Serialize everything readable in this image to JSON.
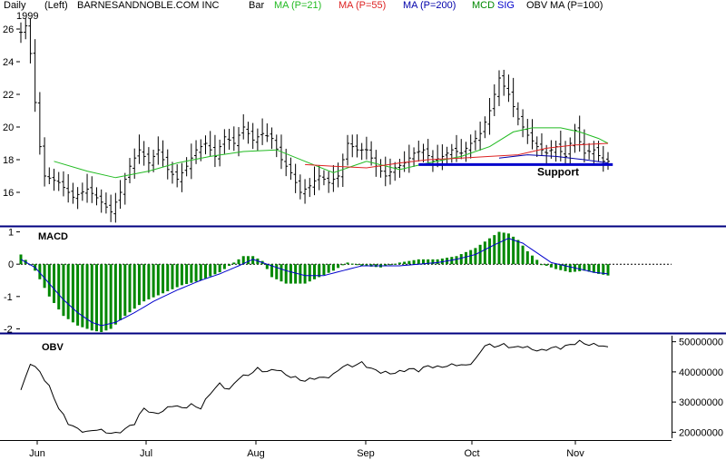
{
  "header": {
    "period": "Daily",
    "axis_side": "(Left)",
    "ticker": "BARNESANDNOBLE.COM INC",
    "year": "1999",
    "chart_style": "Bar",
    "ma21": "MA (P=21)",
    "ma55": "MA (P=55)",
    "ma200": "MA (P=200)",
    "mcd": "MCD",
    "sig": "SIG",
    "obv": "OBV",
    "ma100": "MA (P=100)"
  },
  "colors": {
    "ma21": "#22bb22",
    "ma55": "#dd2222",
    "ma200": "#0000aa",
    "mcd": "#008800",
    "sig": "#0000cc",
    "support": "#0000cc",
    "divider": "#000080",
    "bars": "#000000"
  },
  "chart_data": [
    {
      "type": "bar",
      "panel": "price",
      "ylim": [
        14,
        27
      ],
      "yticks": [
        16,
        18,
        20,
        22,
        24,
        26
      ],
      "ytick_labels": [
        "16",
        "18",
        "20",
        "22",
        "24",
        "26"
      ],
      "x_months": [
        "Jun",
        "Jul",
        "Aug",
        "Sep",
        "Oct",
        "Nov"
      ],
      "price_anchors": [
        [
          0,
          25.8
        ],
        [
          1,
          26.2
        ],
        [
          2,
          24.5
        ],
        [
          3,
          21.5
        ],
        [
          4,
          18.8
        ],
        [
          5,
          17.0
        ],
        [
          8,
          16.6
        ],
        [
          11,
          15.7
        ],
        [
          14,
          16.2
        ],
        [
          17,
          15.4
        ],
        [
          19,
          14.8
        ],
        [
          21,
          16.0
        ],
        [
          23,
          17.6
        ],
        [
          25,
          18.6
        ],
        [
          27,
          17.8
        ],
        [
          29,
          18.6
        ],
        [
          31,
          17.4
        ],
        [
          33,
          16.8
        ],
        [
          35,
          17.6
        ],
        [
          37,
          18.6
        ],
        [
          39,
          19.0
        ],
        [
          41,
          18.2
        ],
        [
          43,
          19.4
        ],
        [
          45,
          19.0
        ],
        [
          47,
          20.0
        ],
        [
          49,
          19.2
        ],
        [
          51,
          19.6
        ],
        [
          53,
          19.3
        ],
        [
          55,
          18.0
        ],
        [
          57,
          17.2
        ],
        [
          59,
          16.0
        ],
        [
          61,
          16.4
        ],
        [
          63,
          17.0
        ],
        [
          65,
          16.6
        ],
        [
          67,
          17.0
        ],
        [
          69,
          19.0
        ],
        [
          71,
          18.6
        ],
        [
          73,
          18.6
        ],
        [
          75,
          17.6
        ],
        [
          77,
          17.0
        ],
        [
          79,
          17.5
        ],
        [
          81,
          17.8
        ],
        [
          83,
          18.4
        ],
        [
          85,
          18.6
        ],
        [
          87,
          17.9
        ],
        [
          89,
          18.2
        ],
        [
          91,
          18.6
        ],
        [
          93,
          18.4
        ],
        [
          95,
          19.0
        ],
        [
          97,
          19.6
        ],
        [
          99,
          21.0
        ],
        [
          101,
          23.0
        ],
        [
          103,
          22.0
        ],
        [
          105,
          20.5
        ],
        [
          107,
          19.5
        ],
        [
          109,
          18.8
        ],
        [
          111,
          18.4
        ],
        [
          113,
          18.8
        ],
        [
          115,
          18.2
        ],
        [
          117,
          19.8
        ],
        [
          119,
          18.4
        ],
        [
          121,
          18.6
        ],
        [
          123,
          17.9
        ]
      ],
      "ma21": [
        [
          7,
          17.9
        ],
        [
          14,
          17.3
        ],
        [
          20,
          16.9
        ],
        [
          27,
          17.3
        ],
        [
          33,
          17.8
        ],
        [
          40,
          18.2
        ],
        [
          47,
          18.5
        ],
        [
          54,
          18.6
        ],
        [
          60,
          17.9
        ],
        [
          66,
          17.2
        ],
        [
          73,
          17.9
        ],
        [
          80,
          17.4
        ],
        [
          86,
          17.8
        ],
        [
          93,
          18.2
        ],
        [
          99,
          18.8
        ],
        [
          104,
          19.7
        ],
        [
          108,
          19.95
        ],
        [
          114,
          19.95
        ],
        [
          118,
          19.7
        ],
        [
          122,
          19.3
        ],
        [
          124,
          19.0
        ]
      ],
      "ma55": [
        [
          60,
          17.7
        ],
        [
          66,
          17.6
        ],
        [
          73,
          17.5
        ],
        [
          80,
          17.8
        ],
        [
          86,
          18.0
        ],
        [
          93,
          18.1
        ],
        [
          99,
          18.2
        ],
        [
          105,
          18.3
        ],
        [
          111,
          18.7
        ],
        [
          117,
          18.9
        ],
        [
          124,
          19.0
        ]
      ],
      "ma200": [
        [
          101,
          18.1
        ],
        [
          107,
          18.3
        ],
        [
          113,
          18.2
        ],
        [
          119,
          18.0
        ],
        [
          124,
          17.8
        ]
      ],
      "support": {
        "level": 17.7,
        "x_from": 84,
        "x_to": 125,
        "label": "Support"
      }
    },
    {
      "type": "bar",
      "panel": "macd",
      "title": "MACD",
      "ylim": [
        -2.1,
        1.1
      ],
      "yticks": [
        1,
        0,
        -1,
        -2
      ],
      "ytick_labels": [
        "1",
        "0",
        "-1",
        "-2"
      ],
      "hist_anchors": [
        [
          0,
          0.3
        ],
        [
          3,
          -0.2
        ],
        [
          6,
          -1.0
        ],
        [
          9,
          -1.6
        ],
        [
          12,
          -1.9
        ],
        [
          15,
          -2.05
        ],
        [
          17,
          -2.1
        ],
        [
          19,
          -2.0
        ],
        [
          22,
          -1.6
        ],
        [
          26,
          -1.15
        ],
        [
          30,
          -0.9
        ],
        [
          34,
          -0.65
        ],
        [
          38,
          -0.5
        ],
        [
          42,
          -0.25
        ],
        [
          45,
          0.05
        ],
        [
          47,
          0.25
        ],
        [
          49,
          0.25
        ],
        [
          51,
          0.1
        ],
        [
          53,
          -0.4
        ],
        [
          56,
          -0.6
        ],
        [
          60,
          -0.6
        ],
        [
          63,
          -0.4
        ],
        [
          66,
          -0.2
        ],
        [
          69,
          0.05
        ],
        [
          72,
          -0.05
        ],
        [
          76,
          -0.1
        ],
        [
          80,
          0.05
        ],
        [
          84,
          0.15
        ],
        [
          88,
          0.15
        ],
        [
          92,
          0.25
        ],
        [
          96,
          0.5
        ],
        [
          99,
          0.8
        ],
        [
          101,
          1.0
        ],
        [
          103,
          0.95
        ],
        [
          105,
          0.75
        ],
        [
          107,
          0.4
        ],
        [
          110,
          0.0
        ],
        [
          113,
          -0.15
        ],
        [
          116,
          -0.25
        ],
        [
          119,
          -0.2
        ],
        [
          122,
          -0.3
        ],
        [
          124,
          -0.35
        ]
      ],
      "signal_anchors": [
        [
          0,
          0.15
        ],
        [
          3,
          -0.1
        ],
        [
          6,
          -0.6
        ],
        [
          9,
          -1.1
        ],
        [
          12,
          -1.5
        ],
        [
          15,
          -1.8
        ],
        [
          17,
          -1.9
        ],
        [
          20,
          -1.8
        ],
        [
          24,
          -1.5
        ],
        [
          28,
          -1.15
        ],
        [
          33,
          -0.8
        ],
        [
          38,
          -0.5
        ],
        [
          42,
          -0.3
        ],
        [
          46,
          -0.05
        ],
        [
          49,
          0.15
        ],
        [
          52,
          0.0
        ],
        [
          56,
          -0.2
        ],
        [
          60,
          -0.35
        ],
        [
          64,
          -0.35
        ],
        [
          68,
          -0.2
        ],
        [
          72,
          -0.05
        ],
        [
          76,
          -0.05
        ],
        [
          80,
          -0.05
        ],
        [
          84,
          0.0
        ],
        [
          88,
          0.05
        ],
        [
          92,
          0.15
        ],
        [
          96,
          0.3
        ],
        [
          100,
          0.6
        ],
        [
          103,
          0.8
        ],
        [
          106,
          0.65
        ],
        [
          109,
          0.35
        ],
        [
          112,
          0.05
        ],
        [
          115,
          -0.05
        ],
        [
          118,
          -0.15
        ],
        [
          121,
          -0.25
        ],
        [
          124,
          -0.3
        ]
      ]
    },
    {
      "type": "line",
      "panel": "obv",
      "title": "OBV",
      "ylim": [
        18000000,
        52000000
      ],
      "yticks": [
        20000000,
        30000000,
        40000000,
        50000000
      ],
      "ytick_labels": [
        "20000000",
        "30000000",
        "40000000",
        "50000000"
      ],
      "obv_anchors": [
        [
          0,
          34000000
        ],
        [
          1,
          38000000
        ],
        [
          2,
          43000000
        ],
        [
          4,
          40000000
        ],
        [
          6,
          35000000
        ],
        [
          8,
          28000000
        ],
        [
          10,
          23000000
        ],
        [
          12,
          21000000
        ],
        [
          14,
          20000000
        ],
        [
          16,
          21000000
        ],
        [
          18,
          20000000
        ],
        [
          20,
          19500000
        ],
        [
          22,
          21000000
        ],
        [
          24,
          23000000
        ],
        [
          26,
          28000000
        ],
        [
          28,
          26000000
        ],
        [
          30,
          27000000
        ],
        [
          32,
          29000000
        ],
        [
          34,
          28000000
        ],
        [
          36,
          29000000
        ],
        [
          38,
          28000000
        ],
        [
          40,
          33000000
        ],
        [
          42,
          36000000
        ],
        [
          44,
          34000000
        ],
        [
          46,
          38000000
        ],
        [
          48,
          39000000
        ],
        [
          50,
          41000000
        ],
        [
          52,
          40000000
        ],
        [
          54,
          41000000
        ],
        [
          56,
          39000000
        ],
        [
          58,
          38000000
        ],
        [
          60,
          37000000
        ],
        [
          62,
          38000000
        ],
        [
          64,
          38000000
        ],
        [
          66,
          39000000
        ],
        [
          68,
          42000000
        ],
        [
          70,
          42000000
        ],
        [
          72,
          43000000
        ],
        [
          74,
          41000000
        ],
        [
          76,
          40000000
        ],
        [
          78,
          39500000
        ],
        [
          80,
          40000000
        ],
        [
          82,
          41000000
        ],
        [
          84,
          40500000
        ],
        [
          86,
          42000000
        ],
        [
          88,
          41500000
        ],
        [
          90,
          42000000
        ],
        [
          92,
          42500000
        ],
        [
          94,
          42000000
        ],
        [
          96,
          44000000
        ],
        [
          98,
          49000000
        ],
        [
          100,
          48500000
        ],
        [
          102,
          49000000
        ],
        [
          104,
          48000000
        ],
        [
          106,
          48500000
        ],
        [
          108,
          47500000
        ],
        [
          110,
          47000000
        ],
        [
          112,
          48000000
        ],
        [
          114,
          48000000
        ],
        [
          116,
          49000000
        ],
        [
          118,
          50000000
        ],
        [
          120,
          49000000
        ],
        [
          122,
          49000000
        ],
        [
          124,
          48000000
        ]
      ]
    }
  ]
}
